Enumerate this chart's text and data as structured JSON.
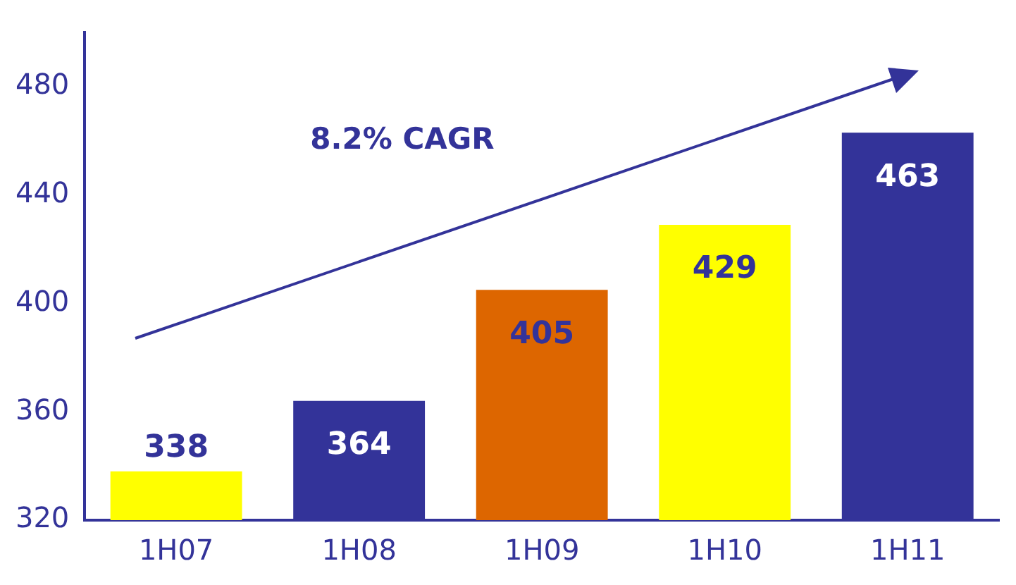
{
  "chart_data": {
    "type": "bar",
    "categories": [
      "1H07",
      "1H08",
      "1H09",
      "1H10",
      "1H11"
    ],
    "values": [
      338,
      364,
      405,
      429,
      463
    ],
    "colors": [
      "#ffff00",
      "#333399",
      "#dd6600",
      "#ffff00",
      "#333399"
    ],
    "ylim": [
      320,
      500
    ],
    "yticks": [
      320,
      360,
      400,
      440,
      480
    ],
    "data_labels": true,
    "grid": false,
    "legend": false,
    "annotations": [
      "8.2% CAGR"
    ]
  }
}
